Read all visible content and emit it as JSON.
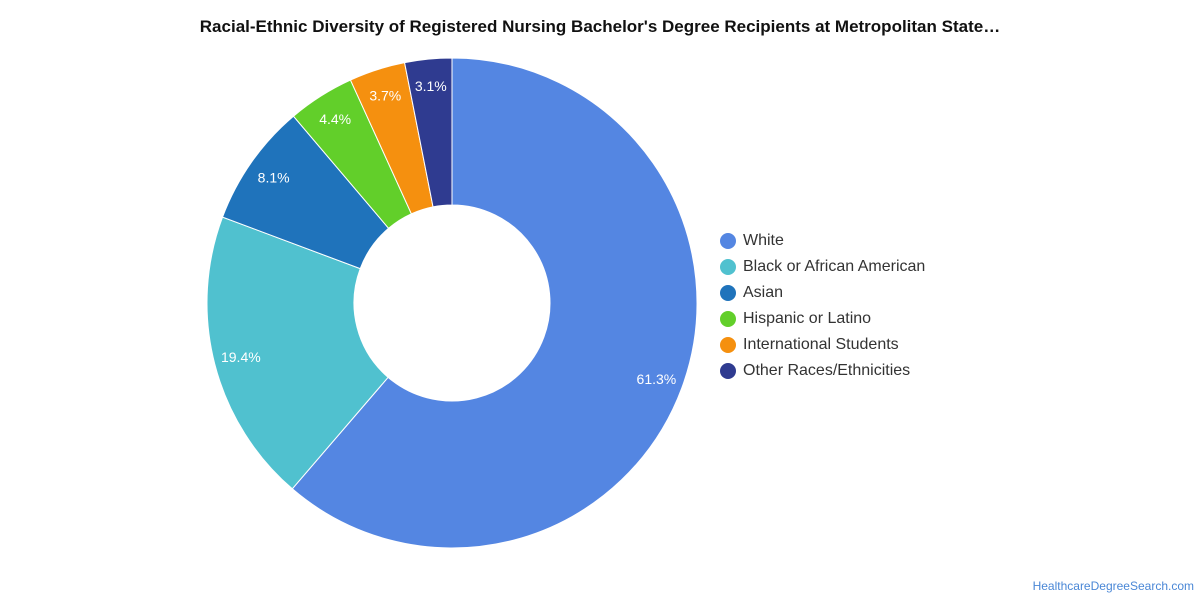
{
  "chart_data": {
    "type": "pie",
    "donut": true,
    "title": "Racial-Ethnic Diversity of Registered Nursing Bachelor's Degree Recipients at Metropolitan State…",
    "slices": [
      {
        "label": "White",
        "value": 61.3,
        "display": "61.3%",
        "color": "#5486e2"
      },
      {
        "label": "Black or African American",
        "value": 19.4,
        "display": "19.4%",
        "color": "#50c1cf"
      },
      {
        "label": "Asian",
        "value": 8.1,
        "display": "8.1%",
        "color": "#1f73bb"
      },
      {
        "label": "Hispanic or Latino",
        "value": 4.4,
        "display": "4.4%",
        "color": "#62cf2a"
      },
      {
        "label": "International Students",
        "value": 3.7,
        "display": "3.7%",
        "color": "#f5900f"
      },
      {
        "label": "Other Races/Ethnicities",
        "value": 3.1,
        "display": "3.1%",
        "color": "#2f3b90"
      }
    ],
    "legend_position": "right"
  },
  "source": "HealthcareDegreeSearch.com"
}
